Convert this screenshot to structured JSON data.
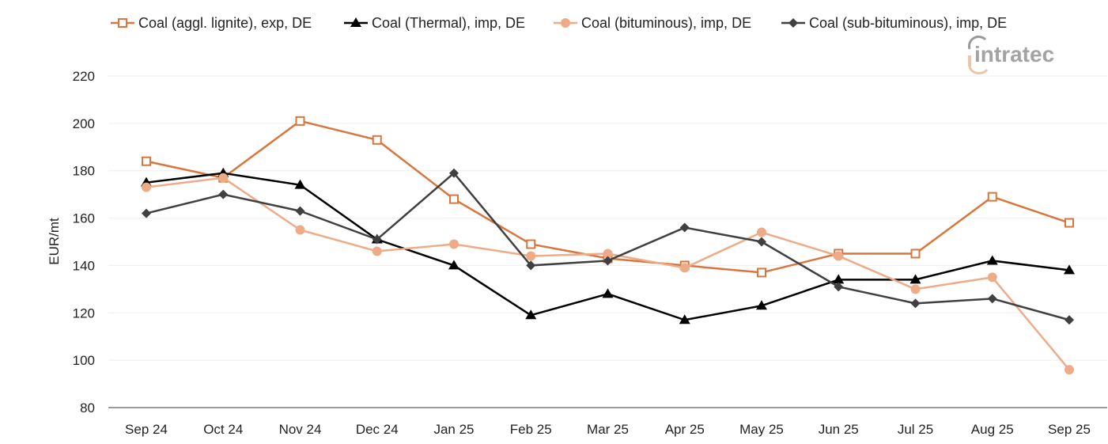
{
  "chart_data": {
    "type": "line",
    "title": "",
    "xlabel": "",
    "ylabel": "EUR/mt",
    "ylim": [
      80,
      220
    ],
    "yticks": [
      80,
      100,
      120,
      140,
      160,
      180,
      200,
      220
    ],
    "grid": true,
    "legend_placement": "top",
    "categories": [
      "Sep 24",
      "Oct 24",
      "Nov 24",
      "Dec 24",
      "Jan 25",
      "Feb 25",
      "Mar 25",
      "Apr 25",
      "May 25",
      "Jun 25",
      "Jul 25",
      "Aug 25",
      "Sep 25"
    ],
    "series": [
      {
        "name": "Coal (aggl. lignite), exp, DE",
        "color": "#d9763e",
        "marker": "square-open",
        "values": [
          184,
          177,
          201,
          193,
          168,
          149,
          143,
          140,
          137,
          145,
          145,
          169,
          158
        ]
      },
      {
        "name": "Coal (Thermal), imp, DE",
        "color": "#000000",
        "marker": "triangle",
        "values": [
          175,
          179,
          174,
          151,
          140,
          119,
          128,
          117,
          123,
          134,
          134,
          142,
          138
        ]
      },
      {
        "name": "Coal (bituminous), imp, DE",
        "color": "#eeab87",
        "marker": "circle",
        "values": [
          173,
          177,
          155,
          146,
          149,
          144,
          145,
          139,
          154,
          144,
          130,
          135,
          96
        ]
      },
      {
        "name": "Coal (sub-bituminous), imp, DE",
        "color": "#404040",
        "marker": "diamond",
        "values": [
          162,
          170,
          163,
          151,
          179,
          140,
          142,
          156,
          150,
          131,
          124,
          126,
          117
        ]
      }
    ]
  },
  "logo": {
    "text": "intratec"
  }
}
